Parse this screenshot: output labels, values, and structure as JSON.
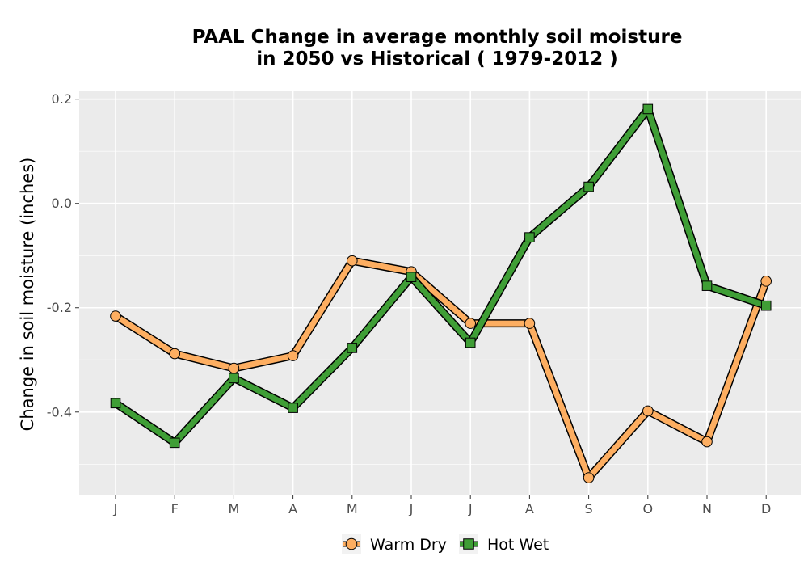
{
  "chart_data": {
    "type": "line",
    "title": [
      "PAAL  Change in average monthly soil moisture",
      "in 2050 vs Historical ( 1979-2012 )"
    ],
    "xlabel": "",
    "ylabel": "Change in soil moisture (inches)",
    "categories": [
      "J",
      "F",
      "M",
      "A",
      "M",
      "J",
      "J",
      "A",
      "S",
      "O",
      "N",
      "D"
    ],
    "ylim": [
      -0.56,
      0.215
    ],
    "yticks": [
      0.2,
      0.0,
      -0.2,
      -0.4
    ],
    "ytick_labels": [
      "0.2",
      "0.0",
      "-0.2",
      "-0.4"
    ],
    "grid": true,
    "legend_position": "bottom",
    "series": [
      {
        "name": "Warm Dry",
        "color": "#fdae61",
        "marker": "circle",
        "values": [
          -0.216,
          -0.288,
          -0.316,
          -0.292,
          -0.11,
          -0.131,
          -0.23,
          -0.23,
          -0.526,
          -0.398,
          -0.457,
          -0.149
        ]
      },
      {
        "name": "Hot Wet",
        "color": "#3f9e36",
        "marker": "square",
        "values": [
          -0.383,
          -0.459,
          -0.335,
          -0.392,
          -0.277,
          -0.141,
          -0.267,
          -0.065,
          0.032,
          0.181,
          -0.158,
          -0.196
        ]
      }
    ]
  }
}
